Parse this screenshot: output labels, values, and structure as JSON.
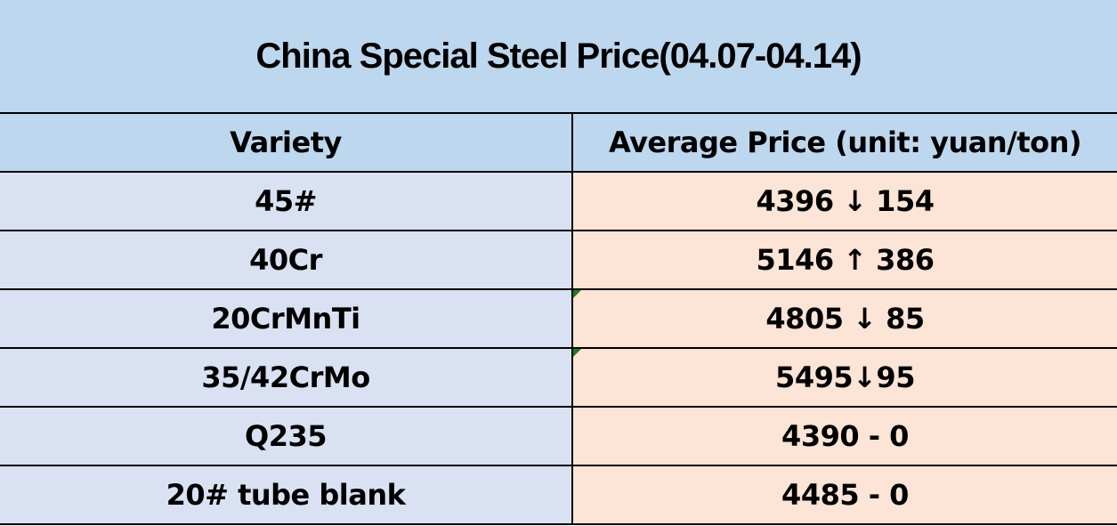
{
  "title": "China Special Steel Price(04.07-04.14)",
  "table": {
    "headers": {
      "variety": "Variety",
      "price": "Average Price (unit: yuan/ton)"
    },
    "rows": [
      {
        "variety": "45#",
        "display": "4396 ↓ 154",
        "price": 4396,
        "trend": "down",
        "change": 154,
        "corner_marker": false
      },
      {
        "variety": "40Cr",
        "display": "5146 ↑ 386",
        "price": 5146,
        "trend": "up",
        "change": 386,
        "corner_marker": false
      },
      {
        "variety": "20CrMnTi",
        "display": "4805 ↓ 85",
        "price": 4805,
        "trend": "down",
        "change": 85,
        "corner_marker": true
      },
      {
        "variety": "35/42CrMo",
        "display": "5495↓95",
        "price": 5495,
        "trend": "down",
        "change": 95,
        "corner_marker": true
      },
      {
        "variety": "Q235",
        "display": "4390 - 0",
        "price": 4390,
        "trend": "flat",
        "change": 0,
        "corner_marker": false
      },
      {
        "variety": "20# tube blank",
        "display": "4485 - 0",
        "price": 4485,
        "trend": "flat",
        "change": 0,
        "corner_marker": false
      }
    ]
  },
  "colors": {
    "title_header_bg": "#BDD7EE",
    "variety_col_bg": "#D9E1F2",
    "price_col_bg": "#FCE4D6",
    "border": "#000000",
    "text": "#000000",
    "error_indicator_green": "#1E7D1E"
  },
  "chart_data": {
    "type": "table",
    "title": "China Special Steel Price(04.07-04.14)",
    "columns": [
      "Variety",
      "Average Price (unit: yuan/ton)"
    ],
    "rows": [
      [
        "45#",
        "4396 ↓ 154"
      ],
      [
        "40Cr",
        "5146 ↑ 386"
      ],
      [
        "20CrMnTi",
        "4805 ↓ 85"
      ],
      [
        "35/42CrMo",
        "5495↓95"
      ],
      [
        "Q235",
        "4390 - 0"
      ],
      [
        "20# tube blank",
        "4485 - 0"
      ]
    ],
    "series": [
      {
        "name": "average_price_yuan_per_ton",
        "values": [
          4396,
          5146,
          4805,
          5495,
          4390,
          4485
        ]
      },
      {
        "name": "weekly_change",
        "values": [
          -154,
          386,
          -85,
          -95,
          0,
          0
        ]
      }
    ],
    "categories": [
      "45#",
      "40Cr",
      "20CrMnTi",
      "35/42CrMo",
      "Q235",
      "20# tube blank"
    ]
  }
}
